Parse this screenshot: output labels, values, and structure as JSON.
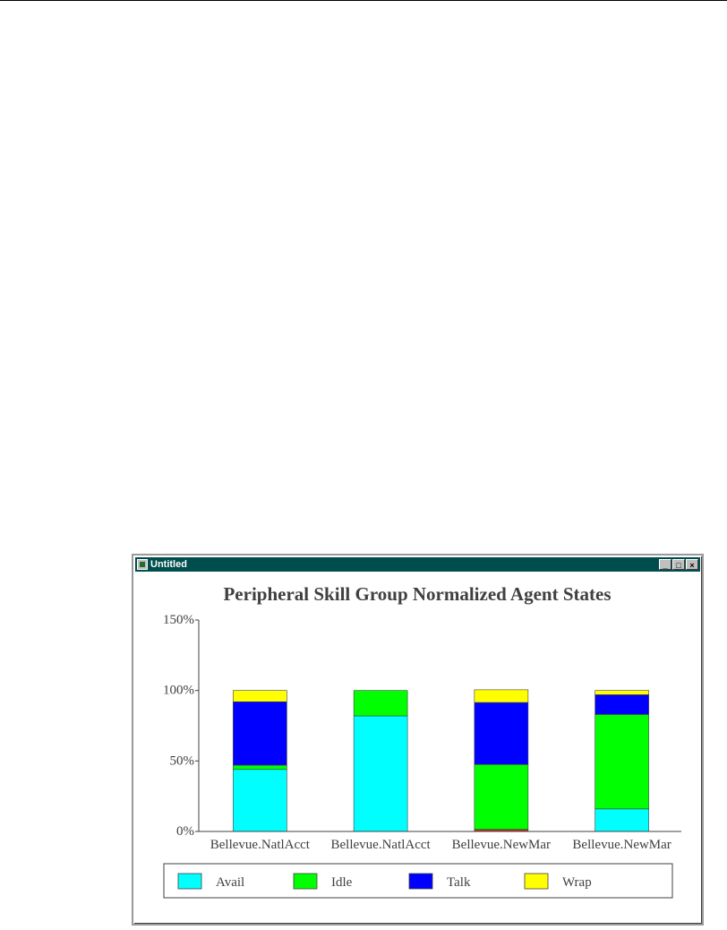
{
  "window": {
    "title": "Untitled",
    "buttons": {
      "minimize": "_",
      "maximize": "□",
      "close": "×"
    }
  },
  "colors": {
    "Avail": "#00ffff",
    "Idle": "#00ff00",
    "Talk": "#0000ff",
    "Wrap": "#ffff00",
    "Other": "#c03020"
  },
  "chart_data": {
    "type": "bar",
    "stacked": true,
    "title": "Peripheral Skill Group Normalized Agent States",
    "categories": [
      "Bellevue.NatlAcct",
      "Bellevue.NatlAcct",
      "Bellevue.NewMar",
      "Bellevue.NewMar"
    ],
    "ylim": [
      0,
      150
    ],
    "yticks": [
      0,
      50,
      100,
      150
    ],
    "ytick_labels": [
      "0%",
      "50%",
      "100%",
      "150%"
    ],
    "legend_position": "bottom",
    "series": [
      {
        "name": "Avail",
        "values": [
          44,
          82,
          0,
          16
        ]
      },
      {
        "name": "Idle",
        "values": [
          3,
          18,
          46,
          67
        ]
      },
      {
        "name": "Talk",
        "values": [
          45,
          0,
          44,
          14
        ]
      },
      {
        "name": "Wrap",
        "values": [
          8,
          0,
          9,
          3
        ]
      }
    ],
    "unlabeled_segment": {
      "color_key": "Other",
      "values": [
        0,
        0,
        1.5,
        0
      ]
    }
  }
}
